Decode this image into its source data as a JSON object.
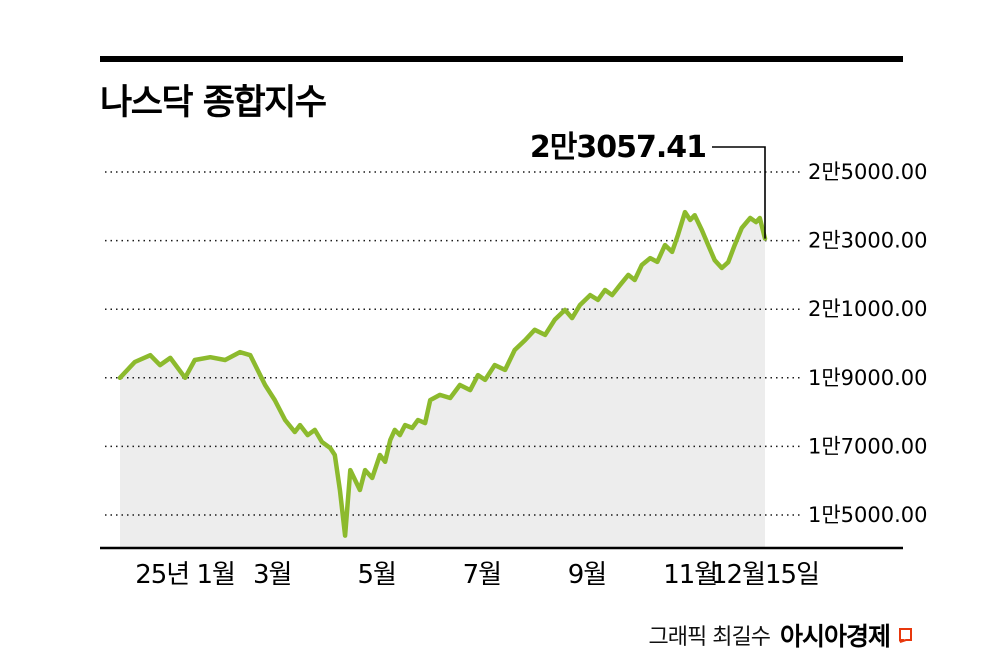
{
  "title": "나스닥 종합지수",
  "credit": {
    "prefix": "그래픽 최길수",
    "brand": "아시아경제"
  },
  "colors": {
    "line": "#8cba2d",
    "fill": "#ededed",
    "grid": "#1a1a1a",
    "axis": "#000000",
    "annotation": "#000000",
    "logo_red": "#e8380d"
  },
  "chart_data": {
    "type": "line",
    "title": "나스닥 종합지수",
    "annotation_label": "2만3057.41",
    "last_value": 23057.41,
    "ylim": [
      14000,
      25300
    ],
    "grid": "horizontal-dotted",
    "legend": "none",
    "y_ticks": [
      {
        "value": 25000,
        "label": "2만5000.00"
      },
      {
        "value": 23000,
        "label": "2만3000.00"
      },
      {
        "value": 21000,
        "label": "2만1000.00"
      },
      {
        "value": 19000,
        "label": "1만9000.00"
      },
      {
        "value": 17000,
        "label": "1만7000.00"
      },
      {
        "value": 15000,
        "label": "1만5000.00"
      }
    ],
    "x_ticks": [
      {
        "t": 0.101,
        "label": "25년 1월"
      },
      {
        "t": 0.236,
        "label": "3월"
      },
      {
        "t": 0.398,
        "label": "5월"
      },
      {
        "t": 0.561,
        "label": "7월"
      },
      {
        "t": 0.724,
        "label": "9월"
      },
      {
        "t": 0.884,
        "label": "11월"
      },
      {
        "t": 1.0,
        "label": "12월15일"
      }
    ],
    "series": [
      {
        "name": "나스닥 종합지수",
        "points": [
          [
            0.0,
            19000
          ],
          [
            0.023,
            19460
          ],
          [
            0.047,
            19660
          ],
          [
            0.062,
            19370
          ],
          [
            0.078,
            19580
          ],
          [
            0.101,
            19000
          ],
          [
            0.116,
            19520
          ],
          [
            0.14,
            19600
          ],
          [
            0.163,
            19520
          ],
          [
            0.186,
            19750
          ],
          [
            0.202,
            19660
          ],
          [
            0.225,
            18790
          ],
          [
            0.24,
            18350
          ],
          [
            0.256,
            17770
          ],
          [
            0.271,
            17420
          ],
          [
            0.279,
            17620
          ],
          [
            0.291,
            17330
          ],
          [
            0.302,
            17480
          ],
          [
            0.313,
            17130
          ],
          [
            0.326,
            16950
          ],
          [
            0.333,
            16750
          ],
          [
            0.341,
            15730
          ],
          [
            0.349,
            14400
          ],
          [
            0.357,
            16310
          ],
          [
            0.372,
            15730
          ],
          [
            0.38,
            16310
          ],
          [
            0.391,
            16080
          ],
          [
            0.403,
            16750
          ],
          [
            0.411,
            16550
          ],
          [
            0.419,
            17190
          ],
          [
            0.426,
            17480
          ],
          [
            0.434,
            17330
          ],
          [
            0.442,
            17620
          ],
          [
            0.453,
            17540
          ],
          [
            0.462,
            17770
          ],
          [
            0.473,
            17680
          ],
          [
            0.481,
            18350
          ],
          [
            0.496,
            18500
          ],
          [
            0.512,
            18410
          ],
          [
            0.527,
            18790
          ],
          [
            0.543,
            18640
          ],
          [
            0.555,
            19080
          ],
          [
            0.566,
            18940
          ],
          [
            0.581,
            19370
          ],
          [
            0.597,
            19230
          ],
          [
            0.612,
            19810
          ],
          [
            0.628,
            20100
          ],
          [
            0.643,
            20400
          ],
          [
            0.659,
            20250
          ],
          [
            0.674,
            20690
          ],
          [
            0.69,
            20980
          ],
          [
            0.701,
            20740
          ],
          [
            0.713,
            21120
          ],
          [
            0.729,
            21410
          ],
          [
            0.741,
            21270
          ],
          [
            0.752,
            21560
          ],
          [
            0.763,
            21410
          ],
          [
            0.775,
            21700
          ],
          [
            0.788,
            22000
          ],
          [
            0.798,
            21850
          ],
          [
            0.809,
            22290
          ],
          [
            0.822,
            22490
          ],
          [
            0.833,
            22380
          ],
          [
            0.845,
            22870
          ],
          [
            0.856,
            22670
          ],
          [
            0.865,
            23160
          ],
          [
            0.876,
            23830
          ],
          [
            0.884,
            23600
          ],
          [
            0.891,
            23740
          ],
          [
            0.902,
            23310
          ],
          [
            0.912,
            22870
          ],
          [
            0.922,
            22430
          ],
          [
            0.933,
            22200
          ],
          [
            0.943,
            22370
          ],
          [
            0.953,
            22870
          ],
          [
            0.964,
            23370
          ],
          [
            0.977,
            23660
          ],
          [
            0.986,
            23540
          ],
          [
            0.992,
            23660
          ],
          [
            1.0,
            23057.41
          ]
        ]
      }
    ]
  }
}
